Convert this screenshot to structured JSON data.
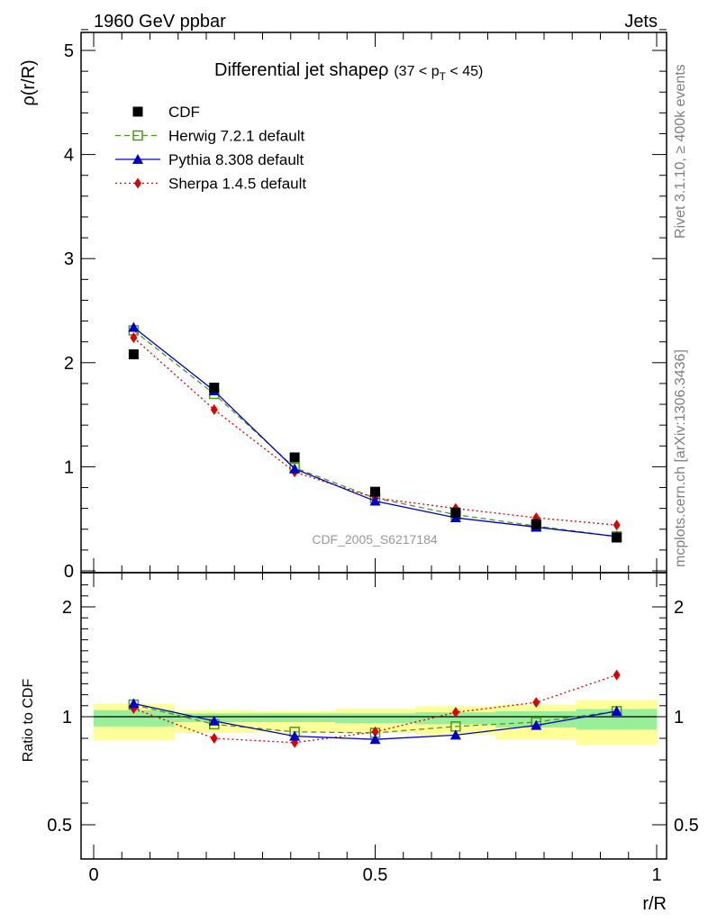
{
  "header": {
    "left": "1960 GeV ppbar",
    "right": "Jets"
  },
  "side_labels": {
    "rivet": "Rivet 3.1.10, ≥ 400k events",
    "mcplots": "mcplots.cern.ch [arXiv:1306.3436]"
  },
  "chart_data": [
    {
      "type": "scatter",
      "panel": "main",
      "title": "Differential jet shapeρ",
      "title_suffix": "(37 < p",
      "title_sub": "T",
      "title_end": " < 45)",
      "ylabel": "ρ(r/R)",
      "xlabel": "",
      "xlim": [
        0,
        1
      ],
      "ylim": [
        0,
        5.2
      ],
      "yticks": [
        "0",
        "1",
        "2",
        "3",
        "4",
        "5"
      ],
      "watermark": "CDF_2005_S6217184",
      "x": [
        0.071,
        0.214,
        0.357,
        0.5,
        0.643,
        0.786,
        0.929
      ],
      "legend_position": "top-left",
      "series": [
        {
          "name": "CDF",
          "color": "#000000",
          "marker": "square",
          "line": "none",
          "values": [
            2.08,
            1.76,
            1.09,
            0.76,
            0.56,
            0.45,
            0.32
          ]
        },
        {
          "name": "Herwig 7.2.1 default",
          "color": "#4c9a1a",
          "marker": "open-square",
          "line": "dashed",
          "values": [
            2.31,
            1.7,
            0.99,
            0.7,
            0.54,
            0.43,
            0.33
          ]
        },
        {
          "name": "Pythia 8.308 default",
          "color": "#0000cc",
          "marker": "triangle",
          "line": "solid",
          "values": [
            2.34,
            1.73,
            0.98,
            0.67,
            0.51,
            0.42,
            0.33
          ]
        },
        {
          "name": "Sherpa 1.4.5 default",
          "color": "#dd0000",
          "marker": "diamond",
          "line": "dotted",
          "values": [
            2.24,
            1.55,
            0.95,
            0.7,
            0.6,
            0.51,
            0.44
          ]
        }
      ]
    },
    {
      "type": "scatter",
      "panel": "ratio",
      "ylabel": "Ratio to CDF",
      "xlabel": "r/R",
      "xlim": [
        0,
        1
      ],
      "ylim": [
        0.35,
        2.3
      ],
      "yticks": [
        "0.5",
        "1",
        "2"
      ],
      "xticks": [
        "0",
        "0.5",
        "1"
      ],
      "x": [
        0.071,
        0.214,
        0.357,
        0.5,
        0.643,
        0.786,
        0.929
      ],
      "bin_edges": [
        0,
        0.143,
        0.286,
        0.429,
        0.571,
        0.714,
        0.857,
        1.0
      ],
      "band_inner": [
        [
          0.955,
          1.06
        ],
        [
          0.975,
          1.03
        ],
        [
          0.975,
          1.03
        ],
        [
          0.97,
          1.03
        ],
        [
          0.965,
          1.04
        ],
        [
          0.95,
          1.05
        ],
        [
          0.94,
          1.07
        ]
      ],
      "band_outer": [
        [
          0.89,
          1.12
        ],
        [
          0.925,
          1.06
        ],
        [
          0.93,
          1.05
        ],
        [
          0.925,
          1.075
        ],
        [
          0.915,
          1.095
        ],
        [
          0.895,
          1.11
        ],
        [
          0.87,
          1.15
        ]
      ],
      "series": [
        {
          "name": "Herwig 7.2.1 default",
          "color": "#4c9a1a",
          "marker": "open-square",
          "line": "dashed",
          "values": [
            1.11,
            0.965,
            0.93,
            0.925,
            0.955,
            0.975,
            1.05
          ]
        },
        {
          "name": "Pythia 8.308 default",
          "color": "#0000cc",
          "marker": "triangle",
          "line": "solid",
          "values": [
            1.12,
            0.98,
            0.91,
            0.895,
            0.915,
            0.96,
            1.05
          ]
        },
        {
          "name": "Sherpa 1.4.5 default",
          "color": "#dd0000",
          "marker": "diamond",
          "line": "dotted",
          "values": [
            1.075,
            0.9,
            0.88,
            0.93,
            1.04,
            1.13,
            1.38
          ]
        }
      ]
    }
  ]
}
